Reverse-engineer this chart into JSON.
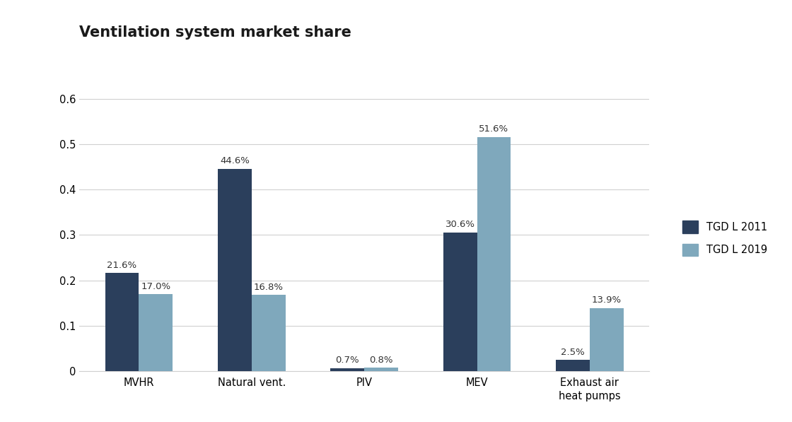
{
  "title": "Ventilation system market share",
  "categories": [
    "MVHR",
    "Natural vent.",
    "PIV",
    "MEV",
    "Exhaust air\nheat pumps"
  ],
  "series": {
    "TGD L 2011": [
      0.216,
      0.446,
      0.007,
      0.306,
      0.025
    ],
    "TGD L 2019": [
      0.17,
      0.168,
      0.008,
      0.516,
      0.139
    ]
  },
  "labels": {
    "TGD L 2011": [
      "21.6%",
      "44.6%",
      "0.7%",
      "30.6%",
      "2.5%"
    ],
    "TGD L 2019": [
      "17.0%",
      "16.8%",
      "0.8%",
      "51.6%",
      "13.9%"
    ]
  },
  "color_2011": "#2b3f5c",
  "color_2019": "#7fa8bc",
  "ylim": [
    0,
    0.65
  ],
  "yticks": [
    0,
    0.1,
    0.2,
    0.3,
    0.4,
    0.5,
    0.6
  ],
  "title_fontsize": 15,
  "label_fontsize": 9.5,
  "tick_fontsize": 10.5,
  "legend_fontsize": 10.5,
  "bar_width": 0.3,
  "background_color": "#ffffff",
  "grid_color": "#d0d0d0"
}
